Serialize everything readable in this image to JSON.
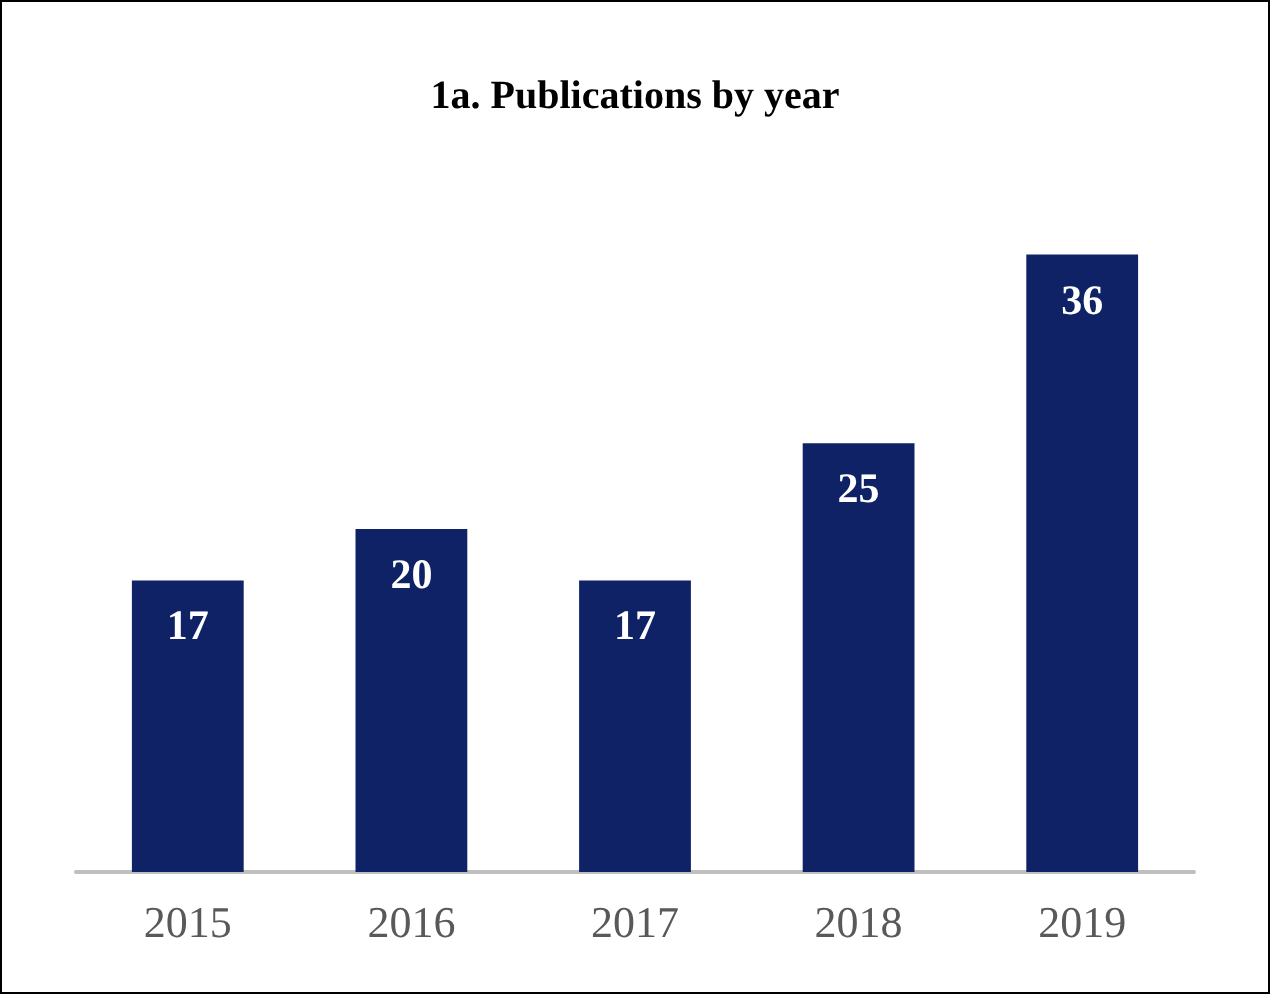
{
  "chart_data": {
    "type": "bar",
    "title": "1a. Publications by year",
    "categories": [
      "2015",
      "2016",
      "2017",
      "2018",
      "2019"
    ],
    "values": [
      17,
      20,
      17,
      25,
      36
    ],
    "color": "#0f2266",
    "data_labels": true
  }
}
